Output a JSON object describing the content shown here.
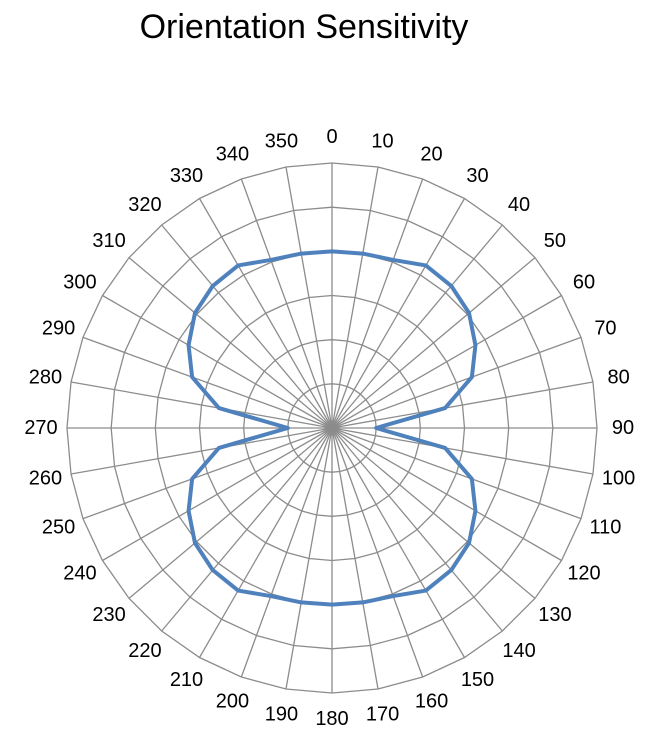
{
  "chart_data": {
    "type": "radar",
    "title": "Orientation Sensitivity",
    "angle_labels": [
      "0",
      "10",
      "20",
      "30",
      "40",
      "50",
      "60",
      "70",
      "80",
      "90",
      "100",
      "110",
      "120",
      "130",
      "140",
      "150",
      "160",
      "170",
      "180",
      "190",
      "200",
      "210",
      "220",
      "230",
      "240",
      "250",
      "260",
      "270",
      "280",
      "290",
      "300",
      "310",
      "320",
      "330",
      "340",
      "350"
    ],
    "series": [
      {
        "values": [
          4,
          4.01,
          4.05,
          4.25,
          4.2,
          4.05,
          3.75,
          3.37,
          2.6,
          1,
          2.6,
          3.37,
          3.75,
          4.05,
          4.2,
          4.25,
          4.05,
          4.01,
          4,
          4.01,
          4.05,
          4.25,
          4.2,
          4.05,
          3.75,
          3.37,
          2.6,
          1,
          2.6,
          3.37,
          3.75,
          4.05,
          4.2,
          4.25,
          4.05,
          4.01
        ]
      }
    ],
    "r_range": [
      0,
      6
    ],
    "grid_rings": 6,
    "grid": true,
    "line_color": "#4F81BD",
    "grid_color": "#8C8C8C"
  }
}
